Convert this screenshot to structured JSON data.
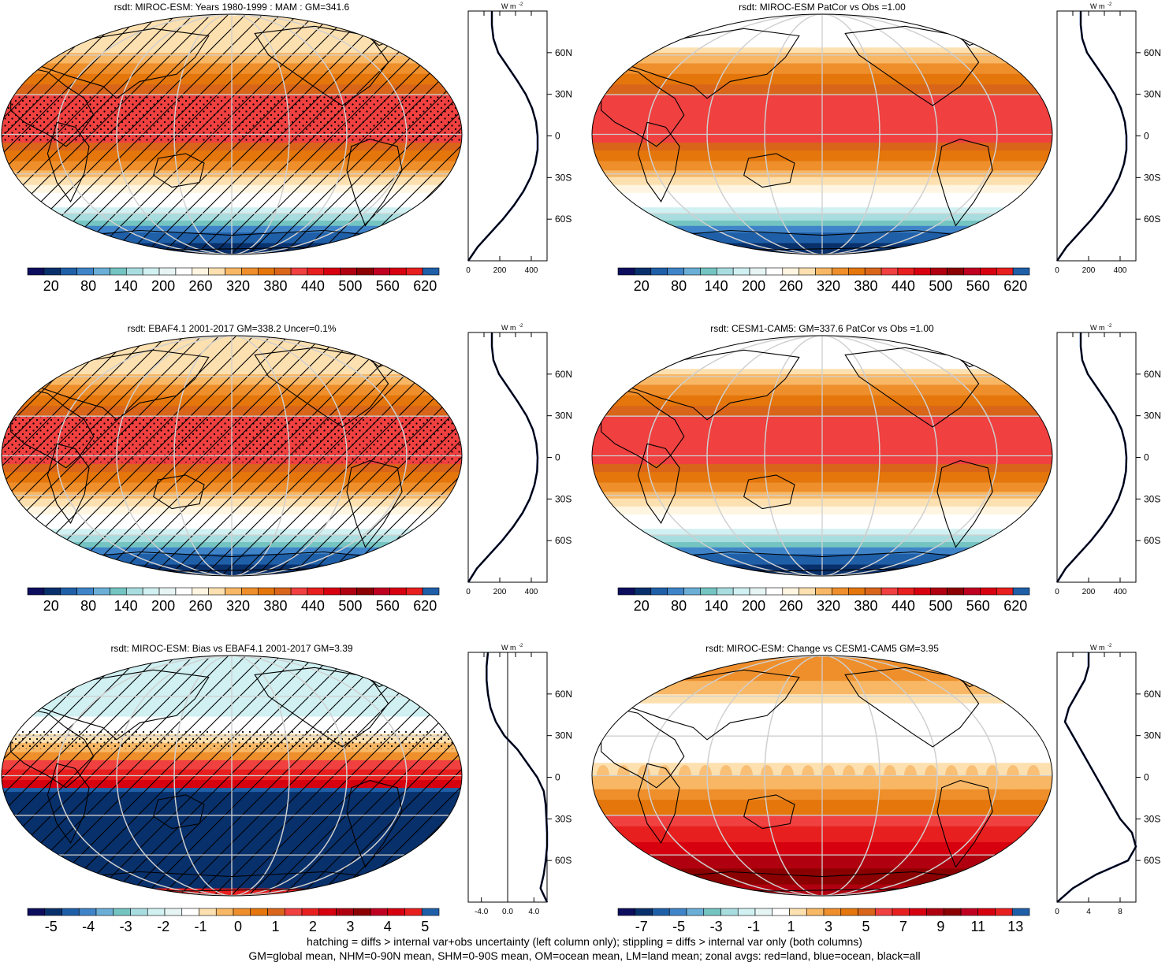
{
  "figure": {
    "footer_line1": "hatching = diffs > internal var+obs uncertainty (left column only); stippling = diffs > internal var only (both columns)",
    "footer_line2": "GM=global mean, NHM=0-90N mean, SHM=0-90S mean, OM=ocean mean, LM=land mean; zonal avgs: red=land, blue=ocean, black=all"
  },
  "palette_absolute": [
    "#0d0d5e",
    "#08306b",
    "#1f5fa8",
    "#3f84c8",
    "#6baed6",
    "#74c4c2",
    "#a8dde0",
    "#d0f0f2",
    "#e6f4f4",
    "#ffffff",
    "#fff5e0",
    "#fde0b0",
    "#f8b765",
    "#ee8f2c",
    "#e4760b",
    "#d9651a",
    "#f04040",
    "#e81f1f",
    "#d7000f",
    "#b00010",
    "#8b0000",
    "#c00020",
    "#d7000f",
    "#e81f1f",
    "#1f5fa8"
  ],
  "palette_diff": [
    "#0d0d5e",
    "#08306b",
    "#1f5fa8",
    "#3f84c8",
    "#6baed6",
    "#74c4c2",
    "#a8dde0",
    "#d0f0f2",
    "#e6f4f4",
    "#ffffff",
    "#fde0b0",
    "#f8b765",
    "#ee8f2c",
    "#e4760b",
    "#d9651a",
    "#f04040",
    "#e81f1f",
    "#d7000f",
    "#b00010",
    "#8b0000",
    "#c00020",
    "#d7000f",
    "#e81f1f",
    "#1f5fa8"
  ],
  "zonal_axis_label": "W m",
  "zonal_axis_sup": "-2",
  "lat_ticks": [
    "60N",
    "30N",
    "0",
    "30S",
    "60S"
  ],
  "chart_data": [
    {
      "type": "heatmap",
      "title": "rsdt: MIROC-ESM: Years 1980-1999 : MAM : GM=341.6",
      "projection": "Robinson, centred 180",
      "colorbar_labels": [
        "20",
        "80",
        "140",
        "200",
        "260",
        "320",
        "380",
        "440",
        "500",
        "560",
        "620"
      ],
      "zonal_mean": {
        "lat": [
          -90,
          -80,
          -70,
          -60,
          -50,
          -40,
          -30,
          -20,
          -10,
          0,
          10,
          20,
          30,
          40,
          50,
          60,
          70,
          80,
          90
        ],
        "values": [
          0,
          60,
          140,
          220,
          290,
          350,
          395,
          425,
          440,
          440,
          430,
          405,
          365,
          310,
          250,
          190,
          160,
          150,
          150
        ],
        "xlim": [
          0,
          500
        ],
        "xticks": [
          "0",
          "200",
          "400"
        ]
      },
      "hatching": true,
      "stippling_band": [
        -5,
        30
      ]
    },
    {
      "type": "heatmap",
      "title": "rsdt: MIROC-ESM PatCor vs Obs =1.00",
      "projection": "Robinson, centred 180",
      "colorbar_labels": [
        "20",
        "80",
        "140",
        "200",
        "260",
        "320",
        "380",
        "440",
        "500",
        "560",
        "620"
      ],
      "zonal_mean": {
        "lat": [
          -90,
          -80,
          -70,
          -60,
          -50,
          -40,
          -30,
          -20,
          -10,
          0,
          10,
          20,
          30,
          40,
          50,
          60,
          70,
          80,
          90
        ],
        "values": [
          0,
          60,
          140,
          220,
          290,
          350,
          395,
          425,
          440,
          440,
          430,
          405,
          365,
          310,
          250,
          190,
          160,
          150,
          150
        ],
        "xlim": [
          0,
          500
        ],
        "xticks": [
          "0",
          "200",
          "400"
        ]
      },
      "hatching": false
    },
    {
      "type": "heatmap",
      "title": "rsdt: EBAF4.1 2001-2017 GM=338.2 Uncer=0.1%",
      "projection": "Robinson, centred 180",
      "colorbar_labels": [
        "20",
        "80",
        "140",
        "200",
        "260",
        "320",
        "380",
        "440",
        "500",
        "560",
        "620"
      ],
      "zonal_mean": {
        "lat": [
          -90,
          -80,
          -70,
          -60,
          -50,
          -40,
          -30,
          -20,
          -10,
          0,
          10,
          20,
          30,
          40,
          50,
          60,
          70,
          80,
          90
        ],
        "values": [
          0,
          55,
          135,
          215,
          285,
          345,
          390,
          420,
          437,
          440,
          432,
          410,
          370,
          315,
          255,
          195,
          160,
          150,
          150
        ],
        "xlim": [
          0,
          500
        ],
        "xticks": [
          "0",
          "200",
          "400"
        ]
      },
      "hatching": true,
      "stippling_band": [
        -5,
        30
      ]
    },
    {
      "type": "heatmap",
      "title": "rsdt: CESM1-CAM5: GM=337.6 PatCor vs Obs =1.00",
      "projection": "Robinson, centred 180",
      "colorbar_labels": [
        "20",
        "80",
        "140",
        "200",
        "260",
        "320",
        "380",
        "440",
        "500",
        "560",
        "620"
      ],
      "zonal_mean": {
        "lat": [
          -90,
          -80,
          -70,
          -60,
          -50,
          -40,
          -30,
          -20,
          -10,
          0,
          10,
          20,
          30,
          40,
          50,
          60,
          70,
          80,
          90
        ],
        "values": [
          0,
          55,
          135,
          215,
          285,
          345,
          390,
          420,
          437,
          440,
          432,
          410,
          370,
          315,
          255,
          195,
          160,
          150,
          150
        ],
        "xlim": [
          0,
          500
        ],
        "xticks": [
          "0",
          "200",
          "400"
        ]
      },
      "hatching": false
    },
    {
      "type": "heatmap",
      "title": "rsdt: MIROC-ESM: Bias vs EBAF4.1 2001-2017 GM=3.39",
      "projection": "Robinson, centred 180",
      "colorbar_labels": [
        "-5",
        "-4",
        "-3",
        "-2",
        "-1",
        "0",
        "1",
        "2",
        "3",
        "4",
        "5"
      ],
      "zonal_mean": {
        "lat": [
          -90,
          -80,
          -70,
          -60,
          -50,
          -40,
          -30,
          -20,
          -10,
          0,
          10,
          20,
          30,
          40,
          50,
          60,
          70,
          80,
          90
        ],
        "values": [
          6,
          5,
          5.5,
          5.8,
          6,
          6,
          5.9,
          5.8,
          5.5,
          4.5,
          3.0,
          1.5,
          -0.5,
          -1.8,
          -2.6,
          -3.0,
          -3.2,
          -3.2,
          -3.0
        ],
        "xlim": [
          -6,
          6
        ],
        "xticks": [
          "-4.0",
          "0.0",
          "4.0"
        ]
      },
      "hatching": true,
      "stippling_band": [
        20,
        35
      ]
    },
    {
      "type": "heatmap",
      "title": "rsdt: MIROC-ESM: Change vs CESM1-CAM5 GM=3.95",
      "projection": "Robinson, centred 180",
      "colorbar_labels": [
        "-7",
        "-5",
        "-3",
        "-1",
        "1",
        "3",
        "5",
        "7",
        "9",
        "11",
        "13"
      ],
      "zonal_mean": {
        "lat": [
          -90,
          -80,
          -70,
          -60,
          -50,
          -40,
          -30,
          -20,
          -10,
          0,
          10,
          20,
          30,
          40,
          50,
          60,
          70,
          80,
          90
        ],
        "values": [
          0,
          2,
          5,
          9,
          10,
          9.5,
          8,
          7,
          6,
          5,
          4,
          3,
          2,
          1,
          1.5,
          2.5,
          3.5,
          4,
          4
        ],
        "xlim": [
          0,
          10
        ],
        "xticks": [
          "0",
          "4",
          "8"
        ]
      },
      "hatching": false
    }
  ]
}
